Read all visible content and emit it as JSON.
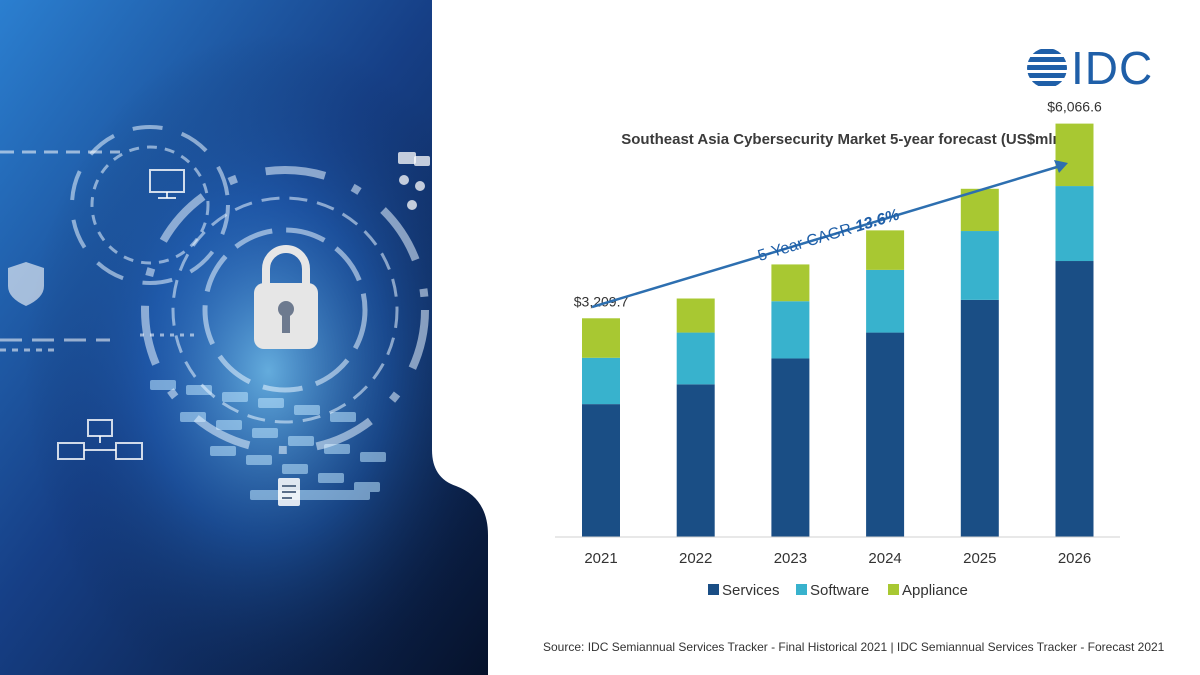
{
  "brand": {
    "logo_text": "IDC",
    "color": "#1f5fa8"
  },
  "hero": {
    "image": "cybersecurity-keyboard-lock-image",
    "colors": [
      "#0b1c3d",
      "#1f4f9a",
      "#4aa3e8"
    ]
  },
  "chart_data": {
    "type": "bar",
    "stacked": true,
    "title": "Southeast Asia Cybersecurity Market 5-year forecast (US$mln)",
    "categories": [
      "2021",
      "2022",
      "2023",
      "2024",
      "2025",
      "2026"
    ],
    "series": [
      {
        "name": "Services",
        "color": "#1a4e85",
        "values": [
          1950,
          2240,
          2620,
          3000,
          3480,
          4050
        ]
      },
      {
        "name": "Software",
        "color": "#38b2cd",
        "values": [
          680,
          760,
          840,
          920,
          1010,
          1100
        ]
      },
      {
        "name": "Appliance",
        "color": "#a8c832",
        "values": [
          579.7,
          500,
          540,
          580,
          620,
          916.6
        ]
      }
    ],
    "totals_shown": [
      {
        "category": "2021",
        "label": "$3,209.7"
      },
      {
        "category": "2026",
        "label": "$6,066.6"
      }
    ],
    "annotation": {
      "prefix": "5-Year CAGR ",
      "value": "13.6%",
      "color": "#1f5fa8"
    },
    "ylim": [
      0,
      7000
    ],
    "grid": false,
    "legend_position": "bottom",
    "xlabel": "",
    "ylabel": ""
  },
  "source": "Source: IDC Semiannual Services Tracker - Final Historical 2021 | IDC Semiannual Services Tracker - Forecast 2021"
}
